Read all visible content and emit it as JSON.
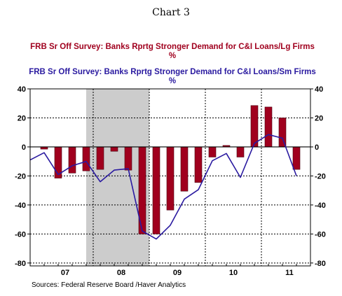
{
  "chart_data": {
    "type": "bar",
    "title": "Chart 3",
    "series": [
      {
        "name": "FRB Sr Off Survey: Banks Rprtg Stronger Demand for C&I Loans/Lg Firms",
        "name_line2": "%",
        "kind": "bar",
        "color": "#a0001e",
        "x": [
          2007.125,
          2007.375,
          2007.625,
          2007.875,
          2008.125,
          2008.375,
          2008.625,
          2008.875,
          2009.125,
          2009.375,
          2009.625,
          2009.875,
          2010.125,
          2010.375,
          2010.625,
          2010.875,
          2011.125,
          2011.375,
          2011.625
        ],
        "values": [
          -1.5,
          -21.5,
          -18,
          -16.5,
          -15.5,
          -3,
          -16,
          -60,
          -60,
          -43.5,
          -30.5,
          -24.5,
          -7,
          1,
          -7,
          28.5,
          27.5,
          20,
          -15.5
        ]
      },
      {
        "name": "FRB Sr Off Survey: Banks Rprtg Stronger Demand for C&I Loans/Sm Firms",
        "name_line2": "%",
        "kind": "line",
        "color": "#2a1aa0",
        "x": [
          2006.875,
          2007.125,
          2007.375,
          2007.625,
          2007.875,
          2008.125,
          2008.375,
          2008.625,
          2008.875,
          2009.125,
          2009.375,
          2009.625,
          2009.875,
          2010.125,
          2010.375,
          2010.625,
          2010.875,
          2011.125,
          2011.375,
          2011.625
        ],
        "values": [
          -9,
          -4,
          -19,
          -13,
          -10,
          -24,
          -16,
          -15,
          -58,
          -63.5,
          -54,
          -36,
          -29.5,
          -9.5,
          -4.5,
          -21,
          2.5,
          8.5,
          6,
          -20
        ]
      }
    ],
    "x_ticks": [
      "07",
      "08",
      "09",
      "10",
      "11"
    ],
    "y_ticks": [
      40,
      20,
      0,
      -20,
      -40,
      -60,
      -80
    ],
    "ylim": [
      -82,
      40
    ],
    "xlim": [
      2006.875,
      2011.875
    ],
    "shaded_region": [
      2007.875,
      2009.0
    ],
    "recession_shade_color": "#cccccc",
    "grid": true,
    "source": "Sources:  Federal Reserve Board /Haver Analytics"
  }
}
